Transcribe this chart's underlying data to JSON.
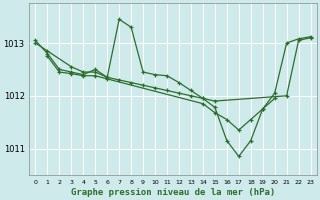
{
  "xlabel": "Graphe pression niveau de la mer (hPa)",
  "bg_color": "#ceeaeb",
  "grid_color": "#ffffff",
  "line_color": "#2d6e2d",
  "series1": {
    "x": [
      0,
      1,
      3,
      4,
      5,
      6,
      7,
      8,
      9,
      10,
      11,
      12,
      13,
      14,
      15,
      21,
      22,
      23
    ],
    "y": [
      1013.0,
      1012.85,
      1012.55,
      1012.45,
      1012.45,
      1012.35,
      1012.3,
      1012.25,
      1012.2,
      1012.15,
      1012.1,
      1012.05,
      1012.0,
      1011.95,
      1011.9,
      1012.0,
      1013.05,
      1013.1
    ]
  },
  "series2": {
    "x": [
      0,
      1,
      2,
      3,
      4,
      5,
      6,
      7,
      8,
      9,
      10,
      11,
      12,
      13,
      14,
      15,
      16,
      17,
      18,
      19,
      20,
      21,
      22,
      23
    ],
    "y": [
      1013.05,
      1012.8,
      1012.5,
      1012.45,
      1012.4,
      1012.5,
      1012.35,
      1013.45,
      1013.3,
      1012.45,
      1012.4,
      1012.38,
      1012.25,
      1012.1,
      1011.95,
      1011.78,
      1011.15,
      1010.85,
      1011.15,
      1011.75,
      1012.05,
      1013.0,
      1013.08,
      1013.12
    ]
  },
  "series3": {
    "x": [
      1,
      2,
      3,
      4,
      5,
      6,
      14,
      15,
      16,
      17,
      18,
      19,
      20
    ],
    "y": [
      1012.75,
      1012.45,
      1012.42,
      1012.38,
      1012.38,
      1012.32,
      1011.85,
      1011.68,
      1011.55,
      1011.35,
      1011.55,
      1011.75,
      1011.95
    ]
  },
  "yticks": [
    1011,
    1012,
    1013
  ],
  "xticks": [
    0,
    1,
    2,
    3,
    4,
    5,
    6,
    7,
    8,
    9,
    10,
    11,
    12,
    13,
    14,
    15,
    16,
    17,
    18,
    19,
    20,
    21,
    22,
    23
  ],
  "ylim": [
    1010.5,
    1013.75
  ],
  "xlim": [
    -0.5,
    23.5
  ]
}
